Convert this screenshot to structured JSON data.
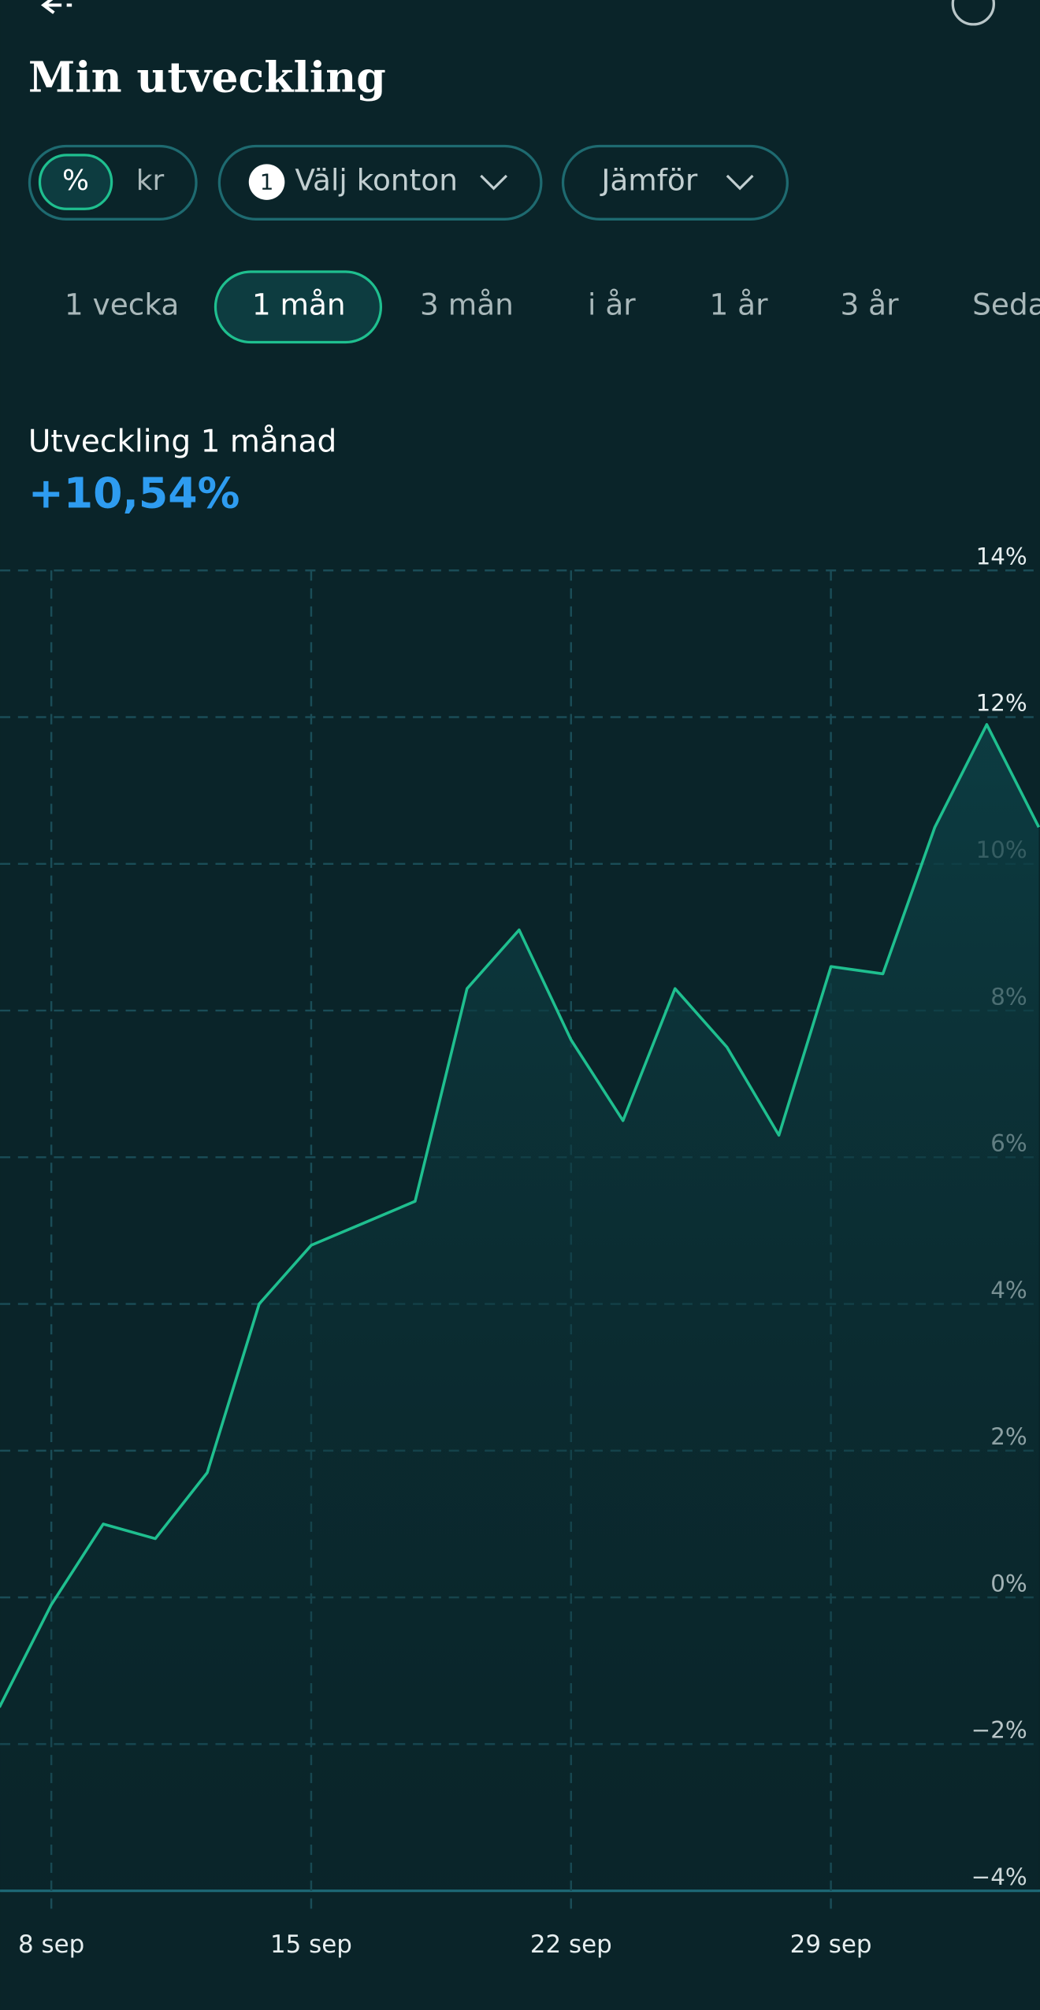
{
  "header": {
    "title": "Min utveckling"
  },
  "filters": {
    "unit_options": [
      "%",
      "kr"
    ],
    "account_count": 1,
    "accounts": "Välj konton",
    "compare": "Jämför"
  },
  "periods": [
    "1 vecka",
    "1 mån",
    "3 mån",
    "i år",
    "1 år",
    "3 år",
    "Seda"
  ],
  "chart_data": {
    "type": "line",
    "title": "Utveckling 1 månad",
    "subtitle": "+10,54%",
    "categories": [
      null,
      "8 sep",
      null,
      null,
      null,
      null,
      "15 sep",
      null,
      null,
      null,
      null,
      "22 sep",
      null,
      null,
      null,
      null,
      "29 sep",
      null,
      null,
      null,
      null
    ],
    "values": [
      -1.5,
      -0.1,
      1.0,
      0.8,
      1.7,
      4.0,
      4.8,
      5.1,
      5.4,
      8.3,
      9.1,
      7.6,
      6.5,
      8.3,
      7.5,
      6.3,
      8.6,
      8.5,
      10.5,
      11.9,
      10.5
    ],
    "color": "#1fbf8f",
    "ylim": [
      -4,
      14
    ],
    "yticks": [
      {
        "value": -4,
        "label": "−4%"
      },
      {
        "value": -2,
        "label": "−2%"
      },
      {
        "value": 0,
        "label": "0%"
      },
      {
        "value": 2,
        "label": "2%"
      },
      {
        "value": 4,
        "label": "4%"
      },
      {
        "value": 6,
        "label": "6%"
      },
      {
        "value": 8,
        "label": "8%"
      },
      {
        "value": 10,
        "label": "10%"
      },
      {
        "value": 12,
        "label": "12%"
      },
      {
        "value": 14,
        "label": "14%"
      }
    ],
    "grid": true
  }
}
